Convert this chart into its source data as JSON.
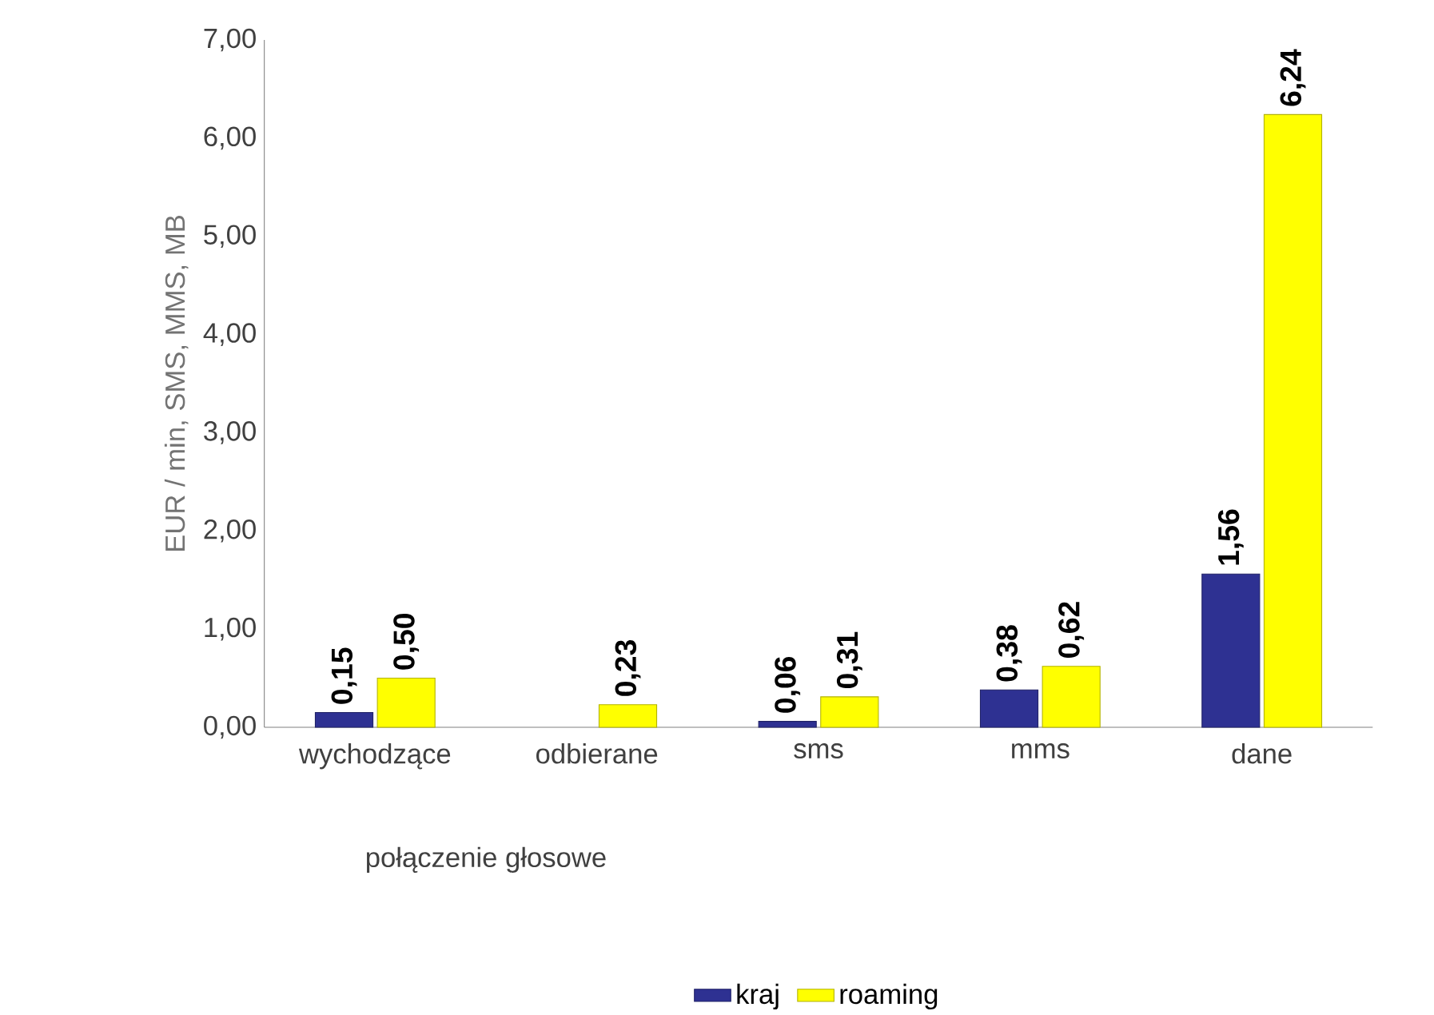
{
  "chart_data": {
    "type": "bar",
    "ylabel": "EUR / min, SMS, MMS, MB",
    "categories": [
      "wychodzące",
      "odbierane",
      "sms",
      "mms",
      "dane"
    ],
    "series": [
      {
        "name": "kraj",
        "color": "#2e3192",
        "values": [
          0.15,
          null,
          0.06,
          0.38,
          1.56
        ],
        "value_labels": [
          "0,15",
          null,
          "0,06",
          "0,38",
          "1,56"
        ]
      },
      {
        "name": "roaming",
        "color": "#ffff00",
        "values": [
          0.5,
          0.23,
          0.31,
          0.62,
          6.24
        ],
        "value_labels": [
          "0,50",
          "0,23",
          "0,31",
          "0,62",
          "6,24"
        ]
      }
    ],
    "annotations": [
      {
        "text": "połączenie głosowe"
      }
    ],
    "ylim": [
      0,
      7
    ],
    "yticks": [
      {
        "value": 0,
        "label": "0,00"
      },
      {
        "value": 1,
        "label": "1,00"
      },
      {
        "value": 2,
        "label": "2,00"
      },
      {
        "value": 3,
        "label": "3,00"
      },
      {
        "value": 4,
        "label": "4,00"
      },
      {
        "value": 5,
        "label": "5,00"
      },
      {
        "value": 6,
        "label": "6,00"
      },
      {
        "value": 7,
        "label": "7,00"
      }
    ],
    "grid": false,
    "legend": "bottom"
  }
}
